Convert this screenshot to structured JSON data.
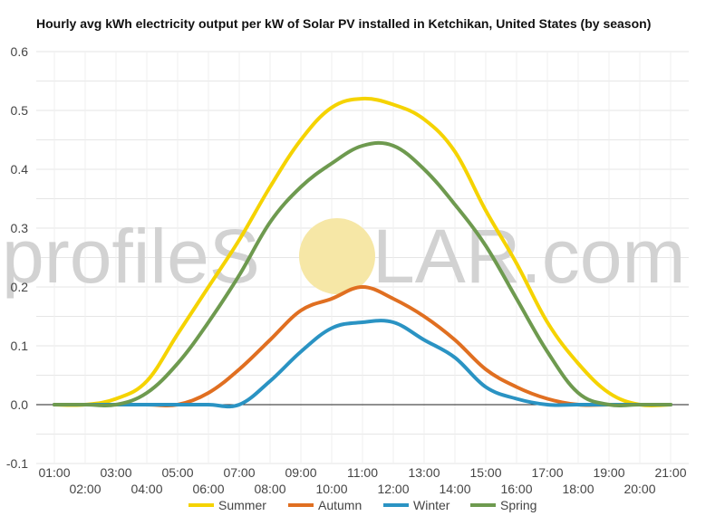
{
  "title": "Hourly avg kWh electricity output per kW of Solar PV installed in Ketchikan, United States (by season)",
  "watermark": {
    "left": "profileS",
    "right": "LAR.com",
    "sun_color": "#f6e7a6"
  },
  "chart_data": {
    "type": "line",
    "title": "Hourly avg kWh electricity output per kW of Solar PV installed in Ketchikan, United States (by season)",
    "xlabel": "",
    "ylabel": "",
    "categories": [
      "01:00",
      "02:00",
      "03:00",
      "04:00",
      "05:00",
      "06:00",
      "07:00",
      "08:00",
      "09:00",
      "10:00",
      "11:00",
      "12:00",
      "13:00",
      "14:00",
      "15:00",
      "16:00",
      "17:00",
      "18:00",
      "19:00",
      "20:00",
      "21:00"
    ],
    "ylim": [
      -0.1,
      0.6
    ],
    "yticks": [
      -0.1,
      0.0,
      0.1,
      0.2,
      0.3,
      0.4,
      0.5,
      0.6
    ],
    "ytick_labels": [
      "-0.1",
      "0.0",
      "0.1",
      "0.2",
      "0.3",
      "0.4",
      "0.5",
      "0.6"
    ],
    "grid": true,
    "legend_position": "bottom",
    "series": [
      {
        "name": "Summer",
        "color": "#f5d300",
        "values": [
          0,
          0,
          0.01,
          0.04,
          0.12,
          0.2,
          0.28,
          0.37,
          0.45,
          0.505,
          0.52,
          0.51,
          0.485,
          0.43,
          0.33,
          0.24,
          0.14,
          0.07,
          0.02,
          0.0,
          0.0
        ]
      },
      {
        "name": "Autumn",
        "color": "#e06f21",
        "values": [
          0,
          0,
          0,
          0,
          0,
          0.02,
          0.06,
          0.11,
          0.16,
          0.18,
          0.2,
          0.18,
          0.15,
          0.11,
          0.06,
          0.03,
          0.01,
          0,
          0,
          0,
          0
        ]
      },
      {
        "name": "Winter",
        "color": "#2a93c3",
        "values": [
          0,
          0,
          0,
          0,
          0,
          0,
          0,
          0.04,
          0.09,
          0.13,
          0.14,
          0.14,
          0.11,
          0.08,
          0.03,
          0.01,
          0,
          0,
          0,
          0,
          0
        ]
      },
      {
        "name": "Spring",
        "color": "#6e9a4f",
        "values": [
          0,
          0,
          0,
          0.02,
          0.07,
          0.14,
          0.22,
          0.31,
          0.37,
          0.41,
          0.44,
          0.44,
          0.4,
          0.34,
          0.27,
          0.18,
          0.09,
          0.02,
          0,
          0,
          0
        ]
      }
    ]
  }
}
